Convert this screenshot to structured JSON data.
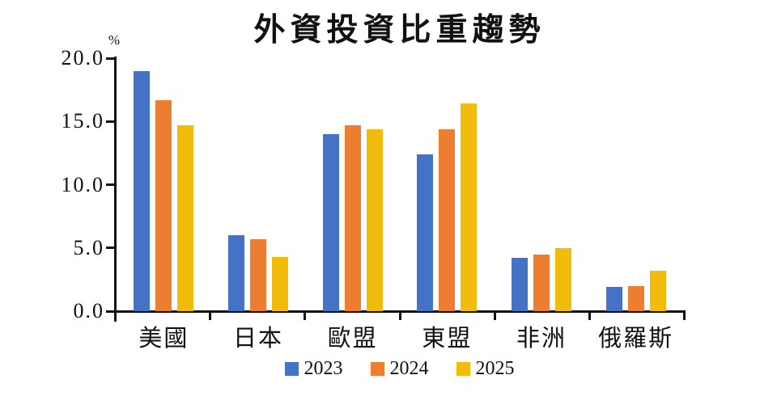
{
  "chart_data": {
    "type": "bar",
    "title": "外資投資比重趨勢",
    "unit_label": "%",
    "categories": [
      "美國",
      "日本",
      "歐盟",
      "東盟",
      "非洲",
      "俄羅斯"
    ],
    "series": [
      {
        "name": "2023",
        "color": "#4472C4",
        "values": [
          19.0,
          6.0,
          14.0,
          12.4,
          4.2,
          1.9
        ]
      },
      {
        "name": "2024",
        "color": "#ED7D31",
        "values": [
          16.7,
          5.7,
          14.7,
          14.4,
          4.5,
          2.0
        ]
      },
      {
        "name": "2025",
        "color": "#F2BC0C",
        "values": [
          14.7,
          4.3,
          14.4,
          16.4,
          5.0,
          3.2
        ]
      }
    ],
    "ylim": [
      0,
      20
    ],
    "ytick_values": [
      20,
      15,
      10,
      5,
      0
    ],
    "ytick_labels": [
      "20.0",
      "15.0",
      "10.0",
      "5.0",
      "0.0"
    ],
    "grid": false,
    "legend_position": "bottom",
    "axis_color": "#111111"
  }
}
